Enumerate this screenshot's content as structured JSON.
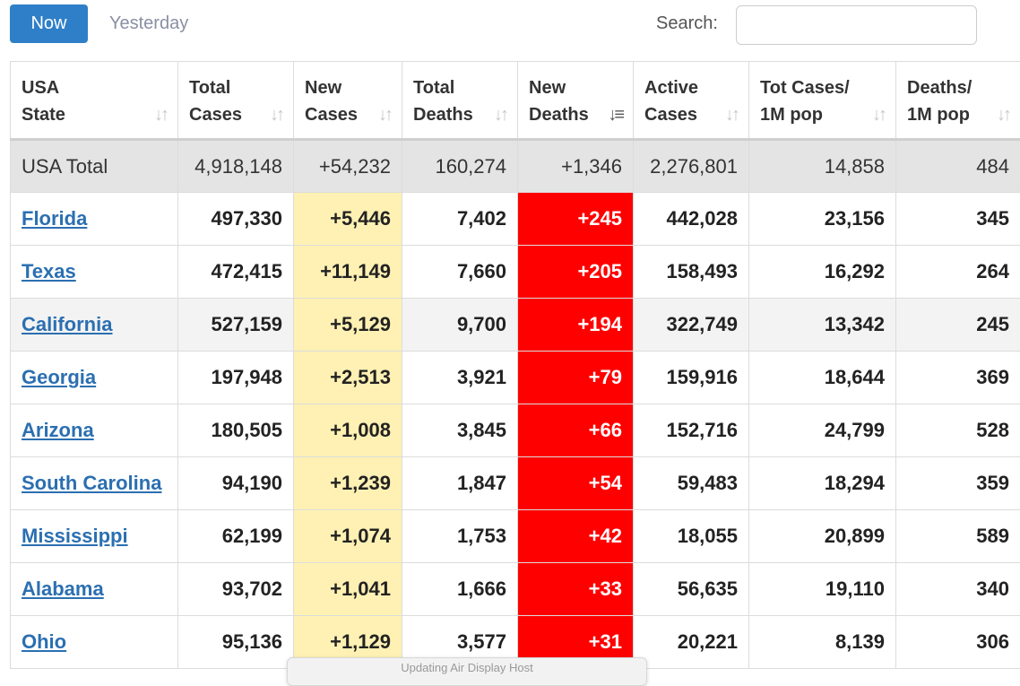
{
  "toolbar": {
    "now_label": "Now",
    "yesterday_label": "Yesterday",
    "search_label": "Search:",
    "search_value": ""
  },
  "table": {
    "headers": [
      {
        "line1": "USA",
        "line2": "State",
        "sort": "unsorted"
      },
      {
        "line1": "Total",
        "line2": "Cases",
        "sort": "unsorted"
      },
      {
        "line1": "New",
        "line2": "Cases",
        "sort": "unsorted"
      },
      {
        "line1": "Total",
        "line2": "Deaths",
        "sort": "unsorted"
      },
      {
        "line1": "New",
        "line2": "Deaths",
        "sort": "descending"
      },
      {
        "line1": "Active",
        "line2": "Cases",
        "sort": "unsorted"
      },
      {
        "line1": "Tot Cases/",
        "line2": "1M pop",
        "sort": "unsorted"
      },
      {
        "line1": "Deaths/",
        "line2": "1M pop",
        "sort": "unsorted"
      }
    ],
    "total_row": {
      "state": "USA Total",
      "total_cases": "4,918,148",
      "new_cases": "+54,232",
      "total_deaths": "160,274",
      "new_deaths": "+1,346",
      "active_cases": "2,276,801",
      "cases_per_1m": "14,858",
      "deaths_per_1m": "484"
    },
    "rows": [
      {
        "state": "Florida",
        "total_cases": "497,330",
        "new_cases": "+5,446",
        "total_deaths": "7,402",
        "new_deaths": "+245",
        "active_cases": "442,028",
        "cases_per_1m": "23,156",
        "deaths_per_1m": "345"
      },
      {
        "state": "Texas",
        "total_cases": "472,415",
        "new_cases": "+11,149",
        "total_deaths": "7,660",
        "new_deaths": "+205",
        "active_cases": "158,493",
        "cases_per_1m": "16,292",
        "deaths_per_1m": "264"
      },
      {
        "state": "California",
        "total_cases": "527,159",
        "new_cases": "+5,129",
        "total_deaths": "9,700",
        "new_deaths": "+194",
        "active_cases": "322,749",
        "cases_per_1m": "13,342",
        "deaths_per_1m": "245"
      },
      {
        "state": "Georgia",
        "total_cases": "197,948",
        "new_cases": "+2,513",
        "total_deaths": "3,921",
        "new_deaths": "+79",
        "active_cases": "159,916",
        "cases_per_1m": "18,644",
        "deaths_per_1m": "369"
      },
      {
        "state": "Arizona",
        "total_cases": "180,505",
        "new_cases": "+1,008",
        "total_deaths": "3,845",
        "new_deaths": "+66",
        "active_cases": "152,716",
        "cases_per_1m": "24,799",
        "deaths_per_1m": "528"
      },
      {
        "state": "South Carolina",
        "total_cases": "94,190",
        "new_cases": "+1,239",
        "total_deaths": "1,847",
        "new_deaths": "+54",
        "active_cases": "59,483",
        "cases_per_1m": "18,294",
        "deaths_per_1m": "359"
      },
      {
        "state": "Mississippi",
        "total_cases": "62,199",
        "new_cases": "+1,074",
        "total_deaths": "1,753",
        "new_deaths": "+42",
        "active_cases": "18,055",
        "cases_per_1m": "20,899",
        "deaths_per_1m": "589"
      },
      {
        "state": "Alabama",
        "total_cases": "93,702",
        "new_cases": "+1,041",
        "total_deaths": "1,666",
        "new_deaths": "+33",
        "active_cases": "56,635",
        "cases_per_1m": "19,110",
        "deaths_per_1m": "340"
      },
      {
        "state": "Ohio",
        "total_cases": "95,136",
        "new_cases": "+1,129",
        "total_deaths": "3,577",
        "new_deaths": "+31",
        "active_cases": "20,221",
        "cases_per_1m": "8,139",
        "deaths_per_1m": "306"
      }
    ]
  },
  "tooltip": {
    "text": "Updating Air Display Host"
  },
  "colors": {
    "primary_button": "#2f7fc8",
    "new_cases_highlight": "#fff1b3",
    "new_deaths_highlight": "#ff0000",
    "link": "#2b6fb1",
    "total_row_bg": "#e4e4e4"
  },
  "icons": {
    "sort_unsorted": "sort-arrows-icon",
    "sort_descending": "sort-descending-icon"
  }
}
